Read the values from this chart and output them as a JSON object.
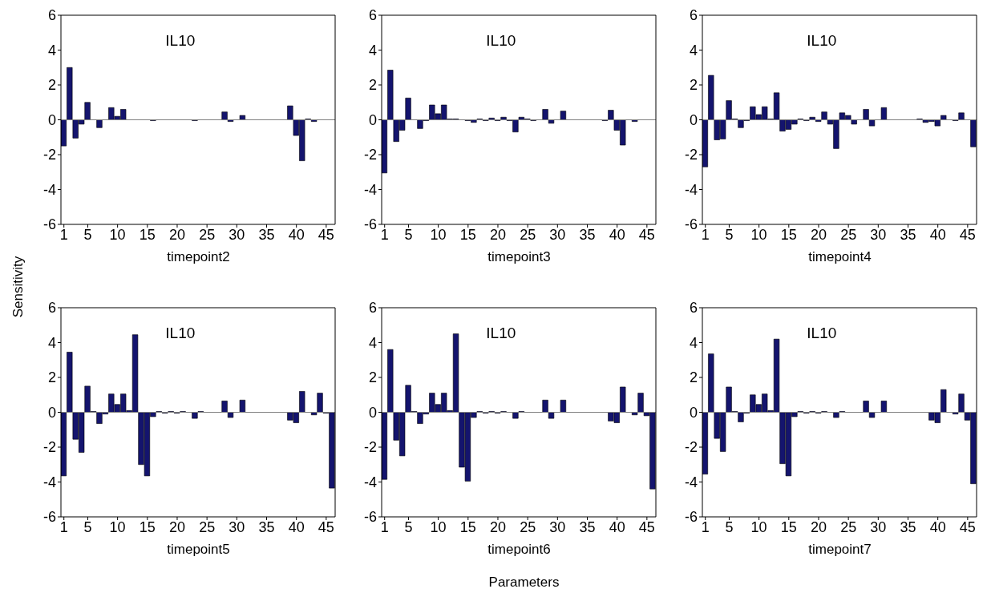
{
  "chart_data": [
    {
      "type": "bar",
      "title": "IL10",
      "xlabel": "timepoint2",
      "ylabel": "Sensitivity",
      "color": "#14146e",
      "xlim": [
        0.5,
        46.5
      ],
      "xticks": [
        1,
        5,
        10,
        15,
        20,
        25,
        30,
        35,
        40,
        45
      ],
      "ylim": [
        -6,
        6
      ],
      "yticks": [
        -6,
        -4,
        -2,
        0,
        2,
        4,
        6
      ],
      "ref_lines": [
        {
          "axis": "y",
          "value": 0,
          "color": "#808080"
        }
      ],
      "x": [
        1,
        2,
        3,
        4,
        5,
        6,
        7,
        8,
        9,
        10,
        11,
        12,
        13,
        14,
        15,
        16,
        17,
        18,
        19,
        20,
        21,
        22,
        23,
        24,
        25,
        26,
        27,
        28,
        29,
        30,
        31,
        32,
        33,
        34,
        35,
        36,
        37,
        38,
        39,
        40,
        41,
        42,
        43,
        44,
        45,
        46
      ],
      "values": [
        -1.5,
        3.0,
        -1.05,
        -0.25,
        1.0,
        0,
        -0.45,
        0,
        0.7,
        0.2,
        0.6,
        0,
        0,
        0,
        0,
        -0.05,
        0,
        0,
        0,
        0,
        0,
        0,
        -0.05,
        0,
        0,
        0,
        0,
        0.45,
        -0.1,
        0,
        0.25,
        0,
        0,
        0,
        0,
        0,
        0,
        0,
        0.8,
        -0.9,
        -2.35,
        0.05,
        -0.1,
        0,
        0,
        0
      ]
    },
    {
      "type": "bar",
      "title": "IL10",
      "xlabel": "timepoint3",
      "color": "#14146e",
      "xlim": [
        0.5,
        46.5
      ],
      "xticks": [
        1,
        5,
        10,
        15,
        20,
        25,
        30,
        35,
        40,
        45
      ],
      "ylim": [
        -6,
        6
      ],
      "yticks": [
        -6,
        -4,
        -2,
        0,
        2,
        4,
        6
      ],
      "ref_lines": [
        {
          "axis": "y",
          "value": 0,
          "color": "#808080"
        }
      ],
      "x": [
        1,
        2,
        3,
        4,
        5,
        6,
        7,
        8,
        9,
        10,
        11,
        12,
        13,
        14,
        15,
        16,
        17,
        18,
        19,
        20,
        21,
        22,
        23,
        24,
        25,
        26,
        27,
        28,
        29,
        30,
        31,
        32,
        33,
        34,
        35,
        36,
        37,
        38,
        39,
        40,
        41,
        42,
        43,
        44,
        45,
        46
      ],
      "values": [
        -3.05,
        2.85,
        -1.25,
        -0.6,
        1.25,
        0,
        -0.5,
        -0.05,
        0.85,
        0.35,
        0.85,
        0.05,
        0.05,
        0,
        -0.05,
        -0.15,
        0.05,
        -0.05,
        0.1,
        -0.05,
        0.15,
        -0.05,
        -0.7,
        0.15,
        0.05,
        -0.05,
        0,
        0.6,
        -0.2,
        0,
        0.5,
        0,
        0,
        0,
        0,
        0,
        0,
        -0.05,
        0.55,
        -0.6,
        -1.45,
        0,
        -0.1,
        0,
        0,
        0
      ]
    },
    {
      "type": "bar",
      "title": "IL10",
      "xlabel": "timepoint4",
      "color": "#14146e",
      "xlim": [
        0.5,
        46.5
      ],
      "xticks": [
        1,
        5,
        10,
        15,
        20,
        25,
        30,
        35,
        40,
        45
      ],
      "ylim": [
        -6,
        6
      ],
      "yticks": [
        -6,
        -4,
        -2,
        0,
        2,
        4,
        6
      ],
      "ref_lines": [
        {
          "axis": "y",
          "value": 0,
          "color": "#808080"
        }
      ],
      "x": [
        1,
        2,
        3,
        4,
        5,
        6,
        7,
        8,
        9,
        10,
        11,
        12,
        13,
        14,
        15,
        16,
        17,
        18,
        19,
        20,
        21,
        22,
        23,
        24,
        25,
        26,
        27,
        28,
        29,
        30,
        31,
        32,
        33,
        34,
        35,
        36,
        37,
        38,
        39,
        40,
        41,
        42,
        43,
        44,
        45,
        46
      ],
      "values": [
        -2.7,
        2.55,
        -1.15,
        -1.1,
        1.1,
        0.05,
        -0.45,
        -0.05,
        0.75,
        0.3,
        0.75,
        0.05,
        1.55,
        -0.65,
        -0.55,
        -0.25,
        0.05,
        -0.05,
        0.15,
        -0.1,
        0.45,
        -0.25,
        -1.65,
        0.4,
        0.25,
        -0.25,
        0,
        0.6,
        -0.35,
        0,
        0.7,
        0,
        0,
        0,
        0,
        0,
        0.05,
        -0.15,
        -0.1,
        -0.35,
        0.25,
        0,
        -0.05,
        0.4,
        0,
        -1.55
      ]
    },
    {
      "type": "bar",
      "title": "IL10",
      "xlabel": "timepoint5",
      "color": "#14146e",
      "xlim": [
        0.5,
        46.5
      ],
      "xticks": [
        1,
        5,
        10,
        15,
        20,
        25,
        30,
        35,
        40,
        45
      ],
      "ylim": [
        -6,
        6
      ],
      "yticks": [
        -6,
        -4,
        -2,
        0,
        2,
        4,
        6
      ],
      "ref_lines": [
        {
          "axis": "y",
          "value": 0,
          "color": "#808080"
        }
      ],
      "x": [
        1,
        2,
        3,
        4,
        5,
        6,
        7,
        8,
        9,
        10,
        11,
        12,
        13,
        14,
        15,
        16,
        17,
        18,
        19,
        20,
        21,
        22,
        23,
        24,
        25,
        26,
        27,
        28,
        29,
        30,
        31,
        32,
        33,
        34,
        35,
        36,
        37,
        38,
        39,
        40,
        41,
        42,
        43,
        44,
        45,
        46
      ],
      "values": [
        -3.65,
        3.45,
        -1.55,
        -2.3,
        1.5,
        0.05,
        -0.65,
        -0.1,
        1.05,
        0.45,
        1.05,
        0.1,
        4.45,
        -3.0,
        -3.65,
        -0.25,
        0.05,
        -0.05,
        0.05,
        -0.05,
        0.05,
        0,
        -0.35,
        0.05,
        0,
        0,
        0,
        0.65,
        -0.3,
        0,
        0.7,
        0,
        0,
        0,
        0,
        0,
        0,
        0,
        -0.45,
        -0.6,
        1.2,
        0,
        -0.15,
        1.1,
        -0.05,
        -4.35
      ]
    },
    {
      "type": "bar",
      "title": "IL10",
      "xlabel": "timepoint6",
      "annotations": [
        "Parameters"
      ],
      "color": "#14146e",
      "xlim": [
        0.5,
        46.5
      ],
      "xticks": [
        1,
        5,
        10,
        15,
        20,
        25,
        30,
        35,
        40,
        45
      ],
      "ylim": [
        -6,
        6
      ],
      "yticks": [
        -6,
        -4,
        -2,
        0,
        2,
        4,
        6
      ],
      "ref_lines": [
        {
          "axis": "y",
          "value": 0,
          "color": "#808080"
        }
      ],
      "x": [
        1,
        2,
        3,
        4,
        5,
        6,
        7,
        8,
        9,
        10,
        11,
        12,
        13,
        14,
        15,
        16,
        17,
        18,
        19,
        20,
        21,
        22,
        23,
        24,
        25,
        26,
        27,
        28,
        29,
        30,
        31,
        32,
        33,
        34,
        35,
        36,
        37,
        38,
        39,
        40,
        41,
        42,
        43,
        44,
        45,
        46
      ],
      "values": [
        -3.85,
        3.6,
        -1.6,
        -2.5,
        1.55,
        0.05,
        -0.65,
        -0.1,
        1.1,
        0.45,
        1.1,
        0.1,
        4.5,
        -3.15,
        -3.95,
        -0.3,
        0.05,
        -0.05,
        0.05,
        -0.05,
        0.05,
        0,
        -0.35,
        0.05,
        0,
        0,
        0,
        0.7,
        -0.35,
        0,
        0.7,
        0,
        0,
        0,
        0,
        0,
        0,
        0,
        -0.5,
        -0.6,
        1.45,
        0,
        -0.15,
        1.1,
        -0.2,
        -4.4
      ]
    },
    {
      "type": "bar",
      "title": "IL10",
      "xlabel": "timepoint7",
      "color": "#14146e",
      "xlim": [
        0.5,
        46.5
      ],
      "xticks": [
        1,
        5,
        10,
        15,
        20,
        25,
        30,
        35,
        40,
        45
      ],
      "ylim": [
        -6,
        6
      ],
      "yticks": [
        -6,
        -4,
        -2,
        0,
        2,
        4,
        6
      ],
      "ref_lines": [
        {
          "axis": "y",
          "value": 0,
          "color": "#808080"
        }
      ],
      "x": [
        1,
        2,
        3,
        4,
        5,
        6,
        7,
        8,
        9,
        10,
        11,
        12,
        13,
        14,
        15,
        16,
        17,
        18,
        19,
        20,
        21,
        22,
        23,
        24,
        25,
        26,
        27,
        28,
        29,
        30,
        31,
        32,
        33,
        34,
        35,
        36,
        37,
        38,
        39,
        40,
        41,
        42,
        43,
        44,
        45,
        46
      ],
      "values": [
        -3.55,
        3.35,
        -1.5,
        -2.25,
        1.45,
        0.05,
        -0.55,
        -0.05,
        1.0,
        0.45,
        1.05,
        0.1,
        4.2,
        -2.95,
        -3.65,
        -0.25,
        0.05,
        -0.05,
        0.05,
        -0.05,
        0.05,
        0,
        -0.3,
        0.05,
        0,
        0,
        0,
        0.65,
        -0.3,
        0,
        0.65,
        0,
        0,
        0,
        0,
        0,
        0,
        0,
        -0.45,
        -0.6,
        1.3,
        0,
        -0.1,
        1.05,
        -0.45,
        -4.1
      ]
    }
  ]
}
